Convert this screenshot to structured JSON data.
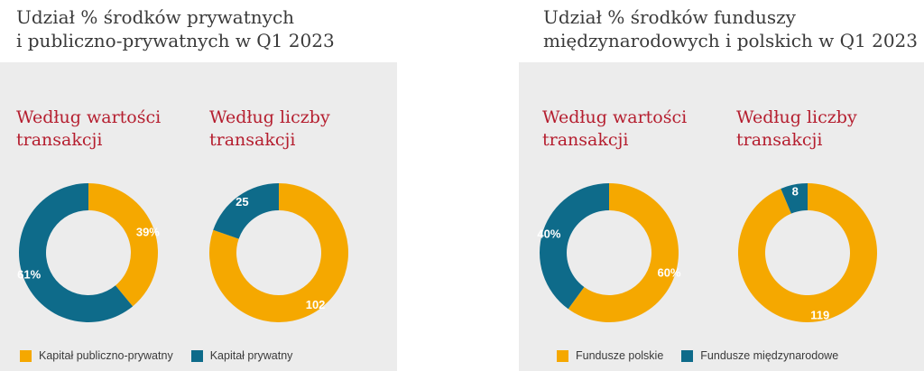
{
  "colors": {
    "orange": "#f5a800",
    "teal": "#0e6b8a",
    "title_red": "#b51e2f"
  },
  "left_panel": {
    "title_line1": "Udział % środków prywatnych",
    "title_line2": "i publiczno-prywatnych w Q1 2023",
    "legend": [
      "Kapitał publiczno-prywatny",
      "Kapitał prywatny"
    ]
  },
  "right_panel": {
    "title_line1": "Udział % środków funduszy",
    "title_line2": "międzynarodowych i polskich w Q1 2023",
    "legend": [
      "Fundusze polskie",
      "Fundusze międzynarodowe"
    ]
  },
  "chart_data": [
    {
      "type": "pie",
      "title_line1": "Według wartości",
      "title_line2": "transakcji",
      "slices": [
        {
          "name": "Kapitał publiczno-prywatny",
          "value": 39,
          "label": "39%",
          "color": "#f5a800"
        },
        {
          "name": "Kapitał prywatny",
          "value": 61,
          "label": "61%",
          "color": "#0e6b8a"
        }
      ]
    },
    {
      "type": "pie",
      "title_line1": "Według liczby",
      "title_line2": "transakcji",
      "slices": [
        {
          "name": "Kapitał publiczno-prywatny",
          "value": 102,
          "label": "102",
          "color": "#f5a800"
        },
        {
          "name": "Kapitał prywatny",
          "value": 25,
          "label": "25",
          "color": "#0e6b8a"
        }
      ]
    },
    {
      "type": "pie",
      "title_line1": "Według wartości",
      "title_line2": "transakcji",
      "slices": [
        {
          "name": "Fundusze polskie",
          "value": 60,
          "label": "60%",
          "color": "#f5a800"
        },
        {
          "name": "Fundusze międzynarodowe",
          "value": 40,
          "label": "40%",
          "color": "#0e6b8a"
        }
      ]
    },
    {
      "type": "pie",
      "title_line1": "Według liczby",
      "title_line2": "transakcji",
      "slices": [
        {
          "name": "Fundusze polskie",
          "value": 119,
          "label": "119",
          "color": "#f5a800"
        },
        {
          "name": "Fundusze międzynarodowe",
          "value": 8,
          "label": "8",
          "color": "#0e6b8a"
        }
      ]
    }
  ]
}
